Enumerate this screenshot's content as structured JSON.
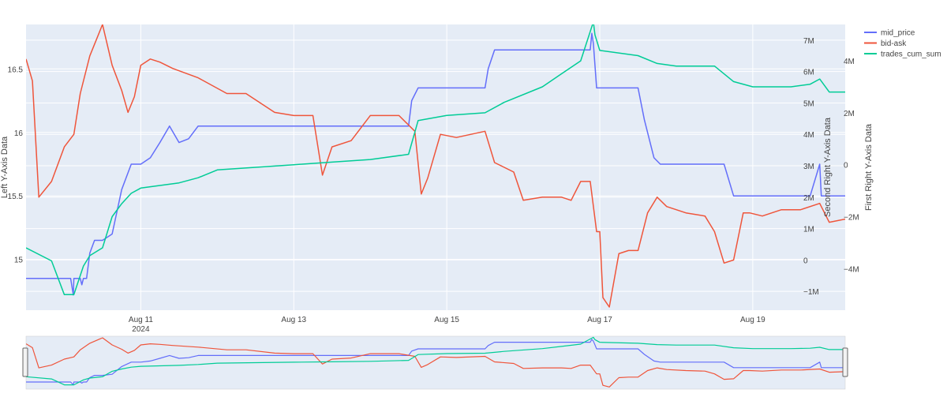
{
  "chart_data": {
    "type": "line",
    "title": "",
    "x_axis": {
      "type": "date",
      "range": [
        "2024-08-09T12:00",
        "2024-08-20T05:00"
      ],
      "ticks": [
        {
          "t": "2024-08-11",
          "label": "Aug 11",
          "sublabel": "2024"
        },
        {
          "t": "2024-08-13",
          "label": "Aug 13",
          "sublabel": ""
        },
        {
          "t": "2024-08-15",
          "label": "Aug 15",
          "sublabel": ""
        },
        {
          "t": "2024-08-17",
          "label": "Aug 17",
          "sublabel": ""
        },
        {
          "t": "2024-08-19",
          "label": "Aug 19",
          "sublabel": ""
        }
      ]
    },
    "y_left": {
      "title": "Left Y-Axis Data",
      "range": [
        14.6,
        16.85
      ],
      "ticks": [
        15,
        15.5,
        16,
        16.5
      ],
      "tick_labels": [
        "15",
        "15.5",
        "16",
        "16.5"
      ]
    },
    "y_right1": {
      "title": "First Right Y-Axis Data",
      "range": [
        -1.6,
        7.5
      ],
      "ticks": [
        -1,
        0,
        1,
        2,
        3,
        4,
        5,
        6,
        7
      ],
      "tick_labels": [
        "−1M",
        "0",
        "1M",
        "2M",
        "3M",
        "4M",
        "5M",
        "6M",
        "7M"
      ]
    },
    "y_right2": {
      "title": "Second Right Y-Axis Data",
      "range": [
        -5.6,
        5.4
      ],
      "ticks": [
        -4,
        -2,
        0,
        2,
        4
      ],
      "tick_labels": [
        "−4M",
        "−2M",
        "0",
        "2M",
        "4M"
      ]
    },
    "legend": {
      "placement": "top-right"
    },
    "grid": true,
    "rangeslider": true,
    "series": [
      {
        "name": "mid_price",
        "color": "#636efa",
        "axis": "y_left",
        "x": [
          "2024-08-09T12:00",
          "2024-08-10T02:00",
          "2024-08-10T02:50",
          "2024-08-10T03:00",
          "2024-08-10T05:00",
          "2024-08-10T05:30",
          "2024-08-10T06:00",
          "2024-08-10T07:00",
          "2024-08-10T08:00",
          "2024-08-10T09:30",
          "2024-08-10T12:00",
          "2024-08-10T15:00",
          "2024-08-10T18:00",
          "2024-08-10T21:00",
          "2024-08-11T00:00",
          "2024-08-11T03:00",
          "2024-08-11T06:00",
          "2024-08-11T09:00",
          "2024-08-11T12:00",
          "2024-08-11T15:00",
          "2024-08-11T18:00",
          "2024-08-12T00:00",
          "2024-08-13T00:00",
          "2024-08-14T00:00",
          "2024-08-14T12:00",
          "2024-08-14T13:00",
          "2024-08-14T15:00",
          "2024-08-14T16:00",
          "2024-08-15T00:00",
          "2024-08-15T12:00",
          "2024-08-15T13:00",
          "2024-08-15T15:00",
          "2024-08-15T21:00",
          "2024-08-16T21:00",
          "2024-08-16T21:30",
          "2024-08-16T22:00",
          "2024-08-16T23:00",
          "2024-08-17T12:00",
          "2024-08-17T14:00",
          "2024-08-17T17:00",
          "2024-08-17T19:00",
          "2024-08-17T22:00",
          "2024-08-18T12:00",
          "2024-08-18T15:00",
          "2024-08-18T18:00",
          "2024-08-18T22:00",
          "2024-08-19T12:00",
          "2024-08-19T18:00",
          "2024-08-19T21:00",
          "2024-08-19T21:30",
          "2024-08-20T05:00"
        ],
        "values": [
          14.85,
          14.85,
          14.72,
          14.85,
          14.85,
          14.8,
          14.85,
          14.85,
          15.05,
          15.15,
          15.15,
          15.2,
          15.55,
          15.75,
          15.75,
          15.8,
          15.92,
          16.05,
          15.92,
          15.95,
          16.05,
          16.05,
          16.05,
          16.05,
          16.05,
          16.25,
          16.35,
          16.35,
          16.35,
          16.35,
          16.5,
          16.65,
          16.65,
          16.65,
          16.78,
          16.7,
          16.35,
          16.35,
          16.1,
          15.8,
          15.75,
          15.75,
          15.75,
          15.75,
          15.5,
          15.5,
          15.5,
          15.5,
          15.75,
          15.5,
          15.5
        ]
      },
      {
        "name": "bid-ask",
        "color": "#ef553b",
        "axis": "y_right1",
        "x": [
          "2024-08-09T12:00",
          "2024-08-09T14:00",
          "2024-08-09T16:00",
          "2024-08-09T20:00",
          "2024-08-10T00:00",
          "2024-08-10T03:00",
          "2024-08-10T05:00",
          "2024-08-10T08:00",
          "2024-08-10T12:00",
          "2024-08-10T15:00",
          "2024-08-10T18:00",
          "2024-08-10T20:00",
          "2024-08-10T22:00",
          "2024-08-11T00:00",
          "2024-08-11T03:00",
          "2024-08-11T06:00",
          "2024-08-11T10:00",
          "2024-08-11T18:00",
          "2024-08-12T03:00",
          "2024-08-12T09:00",
          "2024-08-12T18:00",
          "2024-08-13T00:00",
          "2024-08-13T06:00",
          "2024-08-13T09:00",
          "2024-08-13T12:00",
          "2024-08-13T18:00",
          "2024-08-14T00:00",
          "2024-08-14T09:00",
          "2024-08-14T14:00",
          "2024-08-14T16:00",
          "2024-08-14T18:00",
          "2024-08-14T22:00",
          "2024-08-15T03:00",
          "2024-08-15T12:00",
          "2024-08-15T15:00",
          "2024-08-15T21:00",
          "2024-08-16T00:00",
          "2024-08-16T06:00",
          "2024-08-16T12:00",
          "2024-08-16T15:00",
          "2024-08-16T18:00",
          "2024-08-16T21:00",
          "2024-08-16T23:00",
          "2024-08-17T00:00",
          "2024-08-17T01:00",
          "2024-08-17T03:00",
          "2024-08-17T06:00",
          "2024-08-17T09:00",
          "2024-08-17T12:00",
          "2024-08-17T15:00",
          "2024-08-17T18:00",
          "2024-08-17T21:00",
          "2024-08-18T03:00",
          "2024-08-18T09:00",
          "2024-08-18T12:00",
          "2024-08-18T15:00",
          "2024-08-18T18:00",
          "2024-08-18T21:00",
          "2024-08-18T23:00",
          "2024-08-19T03:00",
          "2024-08-19T09:00",
          "2024-08-19T15:00",
          "2024-08-19T21:00",
          "2024-08-20T00:00",
          "2024-08-20T05:00"
        ],
        "values": [
          6.4,
          5.7,
          2.0,
          2.5,
          3.6,
          4.0,
          5.3,
          6.5,
          7.5,
          6.2,
          5.4,
          4.7,
          5.2,
          6.2,
          6.4,
          6.3,
          6.1,
          5.8,
          5.3,
          5.3,
          4.7,
          4.6,
          4.6,
          2.7,
          3.6,
          3.8,
          4.6,
          4.6,
          4.1,
          2.1,
          2.6,
          4.0,
          3.9,
          4.1,
          3.1,
          2.8,
          1.9,
          2.0,
          2.0,
          1.9,
          2.5,
          2.5,
          0.9,
          0.9,
          -1.2,
          -1.5,
          0.2,
          0.3,
          0.3,
          1.5,
          2.0,
          1.7,
          1.5,
          1.4,
          0.9,
          -0.1,
          0.0,
          1.5,
          1.5,
          1.4,
          1.6,
          1.6,
          1.8,
          1.2,
          1.3
        ]
      },
      {
        "name": "trades_cum_sum",
        "color": "#00cc96",
        "axis": "y_right2",
        "x": [
          "2024-08-09T12:00",
          "2024-08-09T20:00",
          "2024-08-10T00:00",
          "2024-08-10T03:00",
          "2024-08-10T06:00",
          "2024-08-10T08:00",
          "2024-08-10T12:00",
          "2024-08-10T15:00",
          "2024-08-10T18:00",
          "2024-08-10T21:00",
          "2024-08-11T00:00",
          "2024-08-11T06:00",
          "2024-08-11T12:00",
          "2024-08-11T18:00",
          "2024-08-12T00:00",
          "2024-08-12T12:00",
          "2024-08-13T00:00",
          "2024-08-13T12:00",
          "2024-08-14T00:00",
          "2024-08-14T12:00",
          "2024-08-14T15:00",
          "2024-08-15T00:00",
          "2024-08-15T12:00",
          "2024-08-15T18:00",
          "2024-08-16T06:00",
          "2024-08-16T12:00",
          "2024-08-16T18:00",
          "2024-08-16T22:00",
          "2024-08-16T22:30",
          "2024-08-17T00:00",
          "2024-08-17T12:00",
          "2024-08-17T18:00",
          "2024-08-18T00:00",
          "2024-08-18T12:00",
          "2024-08-18T18:00",
          "2024-08-19T00:00",
          "2024-08-19T12:00",
          "2024-08-19T18:00",
          "2024-08-19T21:00",
          "2024-08-20T00:00",
          "2024-08-20T05:00"
        ],
        "values": [
          -3.2,
          -3.7,
          -5.0,
          -5.0,
          -3.9,
          -3.5,
          -3.2,
          -2.0,
          -1.5,
          -1.1,
          -0.9,
          -0.8,
          -0.7,
          -0.5,
          -0.2,
          -0.1,
          0.0,
          0.1,
          0.2,
          0.4,
          1.7,
          1.9,
          2.0,
          2.4,
          3.0,
          3.5,
          4.0,
          5.5,
          5.0,
          4.4,
          4.2,
          3.9,
          3.8,
          3.8,
          3.2,
          3.0,
          3.0,
          3.1,
          3.3,
          2.8,
          2.8
        ]
      }
    ]
  }
}
